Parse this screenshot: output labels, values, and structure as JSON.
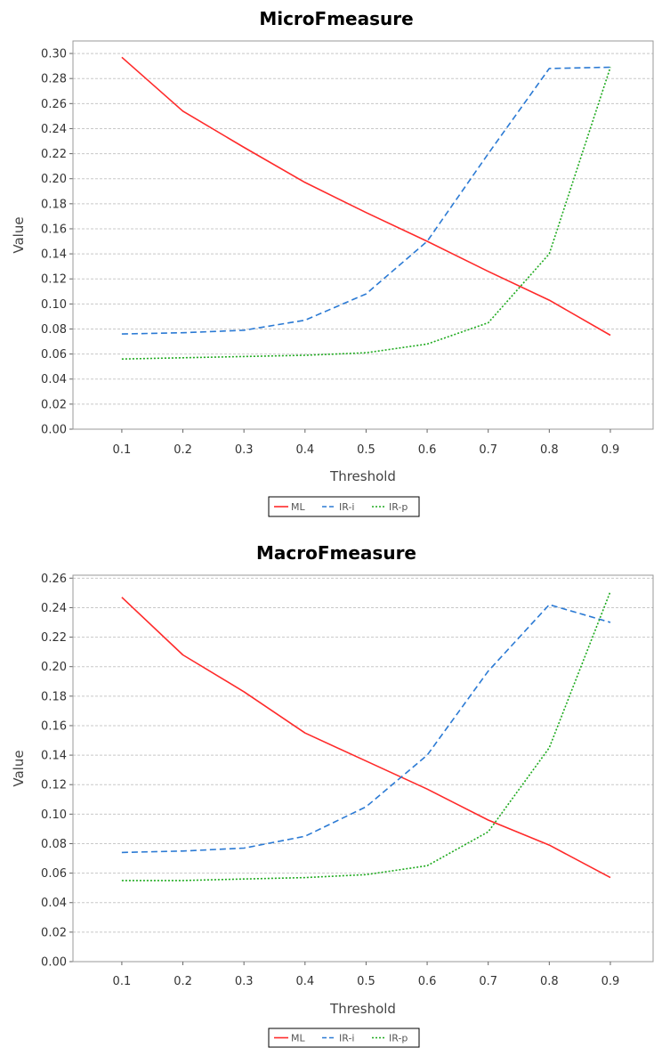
{
  "chart_data": [
    {
      "type": "line",
      "title": "MicroFmeasure",
      "xlabel": "Threshold",
      "ylabel": "Value",
      "x": [
        0.1,
        0.2,
        0.3,
        0.4,
        0.5,
        0.6,
        0.7,
        0.8,
        0.9
      ],
      "x_ticks": [
        "0.1",
        "0.2",
        "0.3",
        "0.4",
        "0.5",
        "0.6",
        "0.7",
        "0.8",
        "0.9"
      ],
      "xlim": [
        0.02,
        0.97
      ],
      "ylim": [
        0,
        0.31
      ],
      "y_ticks": [
        "0.00",
        "0.02",
        "0.04",
        "0.06",
        "0.08",
        "0.10",
        "0.12",
        "0.14",
        "0.16",
        "0.18",
        "0.20",
        "0.22",
        "0.24",
        "0.26",
        "0.28",
        "0.30"
      ],
      "grid": true,
      "legend": "bottom",
      "series": [
        {
          "name": "ML",
          "color": "#ff2a2a",
          "dash": "solid",
          "values": [
            0.297,
            0.254,
            0.225,
            0.197,
            0.173,
            0.15,
            0.126,
            0.103,
            0.075
          ]
        },
        {
          "name": "IR-i",
          "color": "#2b7ad4",
          "dash": "dashed",
          "values": [
            0.076,
            0.077,
            0.079,
            0.087,
            0.108,
            0.15,
            0.22,
            0.288,
            0.289
          ]
        },
        {
          "name": "IR-p",
          "color": "#1eaa1e",
          "dash": "dotted",
          "values": [
            0.056,
            0.057,
            0.058,
            0.059,
            0.061,
            0.068,
            0.085,
            0.14,
            0.289
          ]
        }
      ]
    },
    {
      "type": "line",
      "title": "MacroFmeasure",
      "xlabel": "Threshold",
      "ylabel": "Value",
      "x": [
        0.1,
        0.2,
        0.3,
        0.4,
        0.5,
        0.6,
        0.7,
        0.8,
        0.9
      ],
      "x_ticks": [
        "0.1",
        "0.2",
        "0.3",
        "0.4",
        "0.5",
        "0.6",
        "0.7",
        "0.8",
        "0.9"
      ],
      "xlim": [
        0.02,
        0.97
      ],
      "ylim": [
        0,
        0.262
      ],
      "y_ticks": [
        "0.00",
        "0.02",
        "0.04",
        "0.06",
        "0.08",
        "0.10",
        "0.12",
        "0.14",
        "0.16",
        "0.18",
        "0.20",
        "0.22",
        "0.24",
        "0.26"
      ],
      "grid": true,
      "legend": "bottom",
      "series": [
        {
          "name": "ML",
          "color": "#ff2a2a",
          "dash": "solid",
          "values": [
            0.247,
            0.208,
            0.183,
            0.155,
            0.136,
            0.117,
            0.096,
            0.079,
            0.057
          ]
        },
        {
          "name": "IR-i",
          "color": "#2b7ad4",
          "dash": "dashed",
          "values": [
            0.074,
            0.075,
            0.077,
            0.085,
            0.105,
            0.14,
            0.197,
            0.242,
            0.23
          ]
        },
        {
          "name": "IR-p",
          "color": "#1eaa1e",
          "dash": "dotted",
          "values": [
            0.055,
            0.055,
            0.056,
            0.057,
            0.059,
            0.065,
            0.088,
            0.145,
            0.251
          ]
        }
      ]
    }
  ]
}
